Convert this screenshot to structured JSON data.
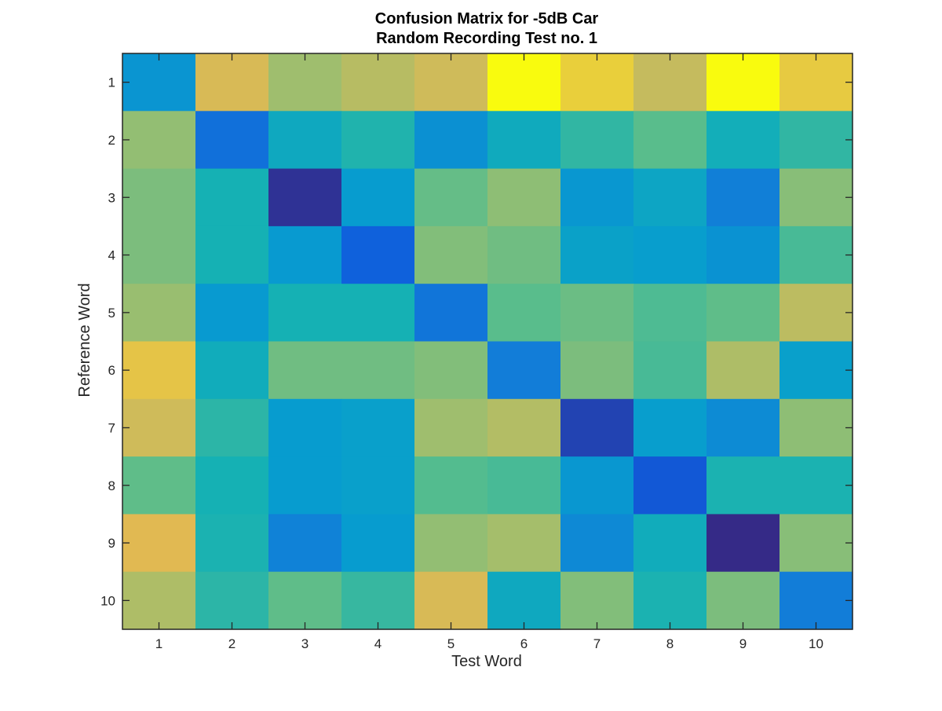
{
  "chart_data": {
    "type": "heatmap",
    "title": [
      "Confusion Matrix for -5dB Car",
      "Random Recording Test no. 1"
    ],
    "xlabel": "Test Word",
    "ylabel": "Reference Word",
    "x_tick_labels": [
      "1",
      "2",
      "3",
      "4",
      "5",
      "6",
      "7",
      "8",
      "9",
      "10"
    ],
    "y_tick_labels": [
      "1",
      "2",
      "3",
      "4",
      "5",
      "6",
      "7",
      "8",
      "9",
      "10"
    ],
    "colormap": "parula",
    "color_scale_note": "values are normalized colormap levels (0 = dark blue, 1 = yellow)",
    "matrix": [
      [
        0.35,
        0.86,
        0.74,
        0.79,
        0.84,
        1.0,
        0.92,
        0.82,
        1.0,
        0.91
      ],
      [
        0.72,
        0.2,
        0.45,
        0.52,
        0.33,
        0.46,
        0.55,
        0.62,
        0.48,
        0.55
      ],
      [
        0.68,
        0.5,
        0.02,
        0.38,
        0.64,
        0.71,
        0.36,
        0.43,
        0.26,
        0.7
      ],
      [
        0.68,
        0.5,
        0.37,
        0.14,
        0.69,
        0.66,
        0.41,
        0.39,
        0.34,
        0.59
      ],
      [
        0.73,
        0.37,
        0.5,
        0.5,
        0.22,
        0.62,
        0.65,
        0.6,
        0.63,
        0.8
      ],
      [
        0.9,
        0.47,
        0.66,
        0.66,
        0.69,
        0.25,
        0.68,
        0.59,
        0.77,
        0.4
      ],
      [
        0.84,
        0.54,
        0.38,
        0.4,
        0.74,
        0.78,
        0.06,
        0.39,
        0.31,
        0.71
      ],
      [
        0.63,
        0.5,
        0.38,
        0.4,
        0.61,
        0.59,
        0.36,
        0.11,
        0.51,
        0.51
      ],
      [
        0.88,
        0.51,
        0.27,
        0.38,
        0.72,
        0.75,
        0.3,
        0.47,
        0.0,
        0.7
      ],
      [
        0.77,
        0.54,
        0.63,
        0.56,
        0.86,
        0.45,
        0.69,
        0.51,
        0.68,
        0.25
      ]
    ]
  }
}
